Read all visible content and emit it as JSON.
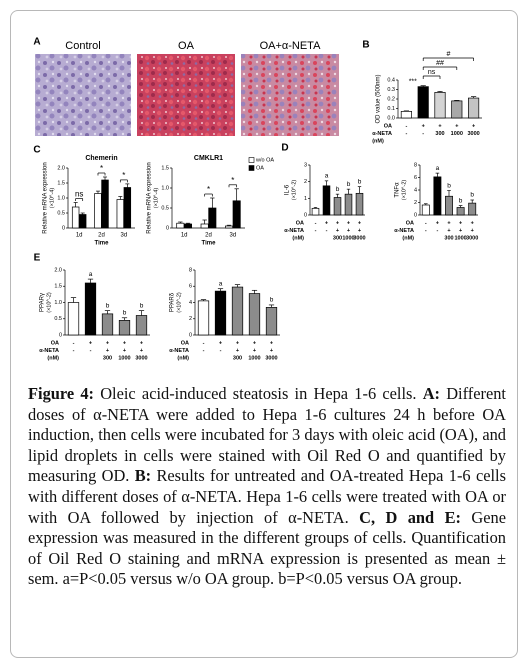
{
  "panel_labels": [
    "A",
    "B",
    "C",
    "D",
    "E"
  ],
  "panel_a": {
    "labels": [
      "Control",
      "OA",
      "OA+α-NETA"
    ]
  },
  "chart_data": [
    {
      "type": "bar",
      "y_label": "OD value (500nm)",
      "ylim": [
        0,
        0.4
      ],
      "yticks": [
        {
          "value": 0,
          "label": "0.0"
        },
        0.1,
        0.2,
        0.3,
        0.4
      ],
      "values": [
        0.07,
        0.33,
        0.27,
        0.18,
        0.21
      ],
      "errors": [
        0.005,
        0.01,
        0.01,
        0.005,
        0.015
      ],
      "colors": [
        "#ffffff",
        "#000000",
        "#d4d4d4",
        "#a8a8a8",
        "#c4c4c4"
      ],
      "rows": [
        {
          "label": "OA",
          "values": [
            "-",
            "+",
            "+",
            "+",
            "+"
          ]
        },
        {
          "label": "α-NETA",
          "values": [
            "-",
            "-",
            "300",
            "1000",
            "3000"
          ]
        }
      ],
      "unit_label": "(nM)",
      "comparisons": [
        "***",
        "ns",
        "##",
        "#"
      ]
    },
    {
      "type": "grouped_bar",
      "title": "Chemerin",
      "y_label": "Relative mRNA expression",
      "y_unit": "(×10^-4)",
      "x_label": "Time",
      "categories": [
        "1d",
        "2d",
        "3d"
      ],
      "ylim": [
        0,
        2
      ],
      "yticks": [
        0,
        0.5,
        {
          "value": 1,
          "label": "1.0"
        },
        1.5,
        {
          "value": 2,
          "label": "2.0"
        }
      ],
      "series": [
        {
          "name": "w/o OA",
          "color": "#ffffff",
          "values": [
            0.7,
            1.15,
            0.95
          ],
          "errors": [
            0.15,
            0.08,
            0.1
          ]
        },
        {
          "name": "OA",
          "color": "#000000",
          "values": [
            0.45,
            1.6,
            1.35
          ],
          "errors": [
            0.05,
            0.1,
            0.12
          ]
        }
      ],
      "group_labels": [
        "ns",
        "*",
        "*"
      ],
      "legend": false
    },
    {
      "type": "grouped_bar",
      "title": "CMKLR1",
      "y_label": "Relative mRNA expression",
      "y_unit": "(×10^-4)",
      "x_label": "Time",
      "categories": [
        "1d",
        "2d",
        "3d"
      ],
      "ylim": [
        0,
        1.5
      ],
      "yticks": [
        0,
        0.5,
        {
          "value": 1,
          "label": "1.0"
        },
        1.5
      ],
      "series": [
        {
          "name": "w/o OA",
          "color": "#ffffff",
          "values": [
            0.12,
            0.1,
            0.05
          ],
          "errors": [
            0.03,
            0.1,
            0.02
          ]
        },
        {
          "name": "OA",
          "color": "#000000",
          "values": [
            0.1,
            0.5,
            0.68
          ],
          "errors": [
            0.02,
            0.25,
            0.3
          ]
        }
      ],
      "group_labels": [
        null,
        "*",
        "*"
      ],
      "legend": true
    },
    {
      "type": "bar",
      "y_label": "IL-6",
      "y_unit": "(×10^-2)",
      "ylim": [
        0,
        3
      ],
      "yticks": [
        0,
        1,
        2,
        3
      ],
      "values": [
        0.4,
        1.75,
        1.05,
        1.25,
        1.3
      ],
      "errors": [
        0.05,
        0.3,
        0.2,
        0.3,
        0.4
      ],
      "colors": [
        "#ffffff",
        "#000000",
        "#8c8c8c",
        "#8c8c8c",
        "#8c8c8c"
      ],
      "bar_labels": [
        null,
        "a",
        "b",
        "b",
        "b"
      ],
      "rows": [
        {
          "label": "OA",
          "values": [
            "-",
            "+",
            "+",
            "+",
            "+"
          ]
        },
        {
          "label": "α-NETA",
          "values": [
            "-",
            "-",
            "+",
            "+",
            "+"
          ]
        },
        {
          "label": "(nM)",
          "values": [
            null,
            null,
            "300",
            "1000",
            "3000"
          ]
        }
      ]
    },
    {
      "type": "bar",
      "y_label": "TNFα",
      "y_unit": "(×10^-2)",
      "ylim": [
        0,
        8
      ],
      "yticks": [
        0,
        2,
        4,
        6,
        8
      ],
      "values": [
        1.6,
        6.1,
        3.0,
        1.2,
        1.9
      ],
      "errors": [
        0.2,
        0.6,
        0.9,
        0.3,
        0.5
      ],
      "colors": [
        "#ffffff",
        "#000000",
        "#8c8c8c",
        "#8c8c8c",
        "#8c8c8c"
      ],
      "bar_labels": [
        null,
        "a",
        "b",
        "b",
        "b"
      ],
      "rows": [
        {
          "label": "OA",
          "values": [
            "-",
            "+",
            "+",
            "+",
            "+"
          ]
        },
        {
          "label": "α-NETA",
          "values": [
            "-",
            "-",
            "+",
            "+",
            "+"
          ]
        },
        {
          "label": "(nM)",
          "values": [
            null,
            null,
            "300",
            "1000",
            "3000"
          ]
        }
      ]
    },
    {
      "type": "bar",
      "y_label": "PPARγ",
      "y_unit": "(×10^-2)",
      "ylim": [
        0,
        2
      ],
      "yticks": [
        0,
        0.5,
        {
          "value": 1,
          "label": "1.0"
        },
        1.5,
        {
          "value": 2,
          "label": "2.0"
        }
      ],
      "values": [
        1.0,
        1.6,
        0.65,
        0.45,
        0.6
      ],
      "errors": [
        0.15,
        0.12,
        0.1,
        0.08,
        0.15
      ],
      "colors": [
        "#ffffff",
        "#000000",
        "#8c8c8c",
        "#8c8c8c",
        "#8c8c8c"
      ],
      "bar_labels": [
        null,
        "a",
        "b",
        "b",
        "b"
      ],
      "rows": [
        {
          "label": "OA",
          "values": [
            "-",
            "+",
            "+",
            "+",
            "+"
          ]
        },
        {
          "label": "α-NETA",
          "values": [
            "-",
            "-",
            "+",
            "+",
            "+"
          ]
        },
        {
          "label": "(nM)",
          "values": [
            null,
            null,
            "300",
            "1000",
            "3000"
          ]
        }
      ]
    },
    {
      "type": "bar",
      "y_label": "PPARδ",
      "y_unit": "(×10^-2)",
      "ylim": [
        0,
        8
      ],
      "yticks": [
        0,
        2,
        4,
        6,
        8
      ],
      "values": [
        4.2,
        5.4,
        5.9,
        5.1,
        3.4
      ],
      "errors": [
        0.15,
        0.3,
        0.3,
        0.4,
        0.3
      ],
      "colors": [
        "#ffffff",
        "#000000",
        "#8c8c8c",
        "#8c8c8c",
        "#8c8c8c"
      ],
      "bar_labels": [
        null,
        "a",
        null,
        null,
        "b"
      ],
      "rows": [
        {
          "label": "OA",
          "values": [
            "-",
            "+",
            "+",
            "+",
            "+"
          ]
        },
        {
          "label": "α-NETA",
          "values": [
            "-",
            "-",
            "+",
            "+",
            "+"
          ]
        },
        {
          "label": "(nM)",
          "values": [
            null,
            null,
            "300",
            "1000",
            "3000"
          ]
        }
      ]
    }
  ],
  "caption": [
    {
      "text": "Figure 4:",
      "bold": true
    },
    {
      "text": " Oleic acid-induced steatosis in Hepa 1-6 cells. ",
      "bold": false
    },
    {
      "text": "A:",
      "bold": true
    },
    {
      "text": " Different doses of α-NETA were added to Hepa 1-6 cultures 24 h before OA induction, then cells were incubated for 3 days with oleic acid (OA), and lipid droplets in cells were stained with Oil Red O and quantified by measuring OD. ",
      "bold": false
    },
    {
      "text": "B:",
      "bold": true
    },
    {
      "text": " Results for untreated and OA-treated Hepa 1-6 cells with different doses of α-NETA. Hepa 1-6 cells were treated with OA or with OA followed by injection of α-NETA. ",
      "bold": false
    },
    {
      "text": "C, D and E:",
      "bold": true
    },
    {
      "text": " Gene expression was measured in the different groups of cells. Quantification of Oil Red O staining and mRNA expression is presented as mean ± sem. a=P<0.05 versus w/o OA group. b=P<0.05 versus OA group.",
      "bold": false
    }
  ]
}
